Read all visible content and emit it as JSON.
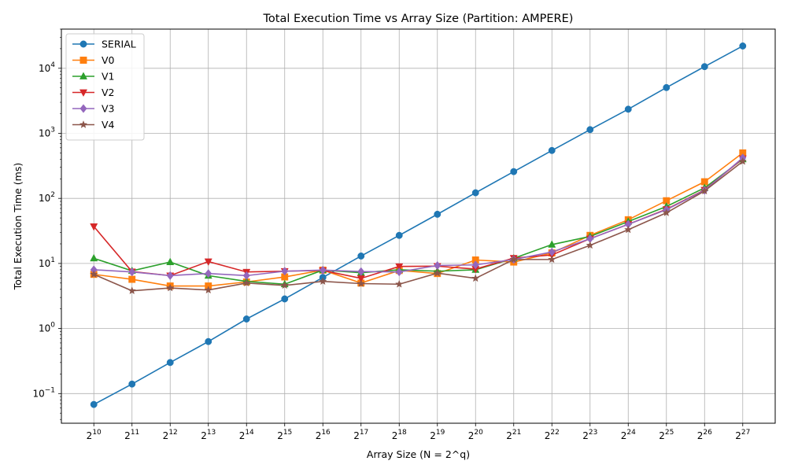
{
  "chart_data": {
    "type": "line",
    "title": "Total Execution Time vs Array Size (Partition: AMPERE)",
    "xlabel": "Array Size (N = 2^q)",
    "ylabel": "Total Execution Time (ms)",
    "yscale": "log",
    "ylim": [
      0.035,
      40000
    ],
    "grid": true,
    "legend_position": "top-left",
    "x_tick_base": "2",
    "x": [
      10,
      11,
      12,
      13,
      14,
      15,
      16,
      17,
      18,
      19,
      20,
      21,
      22,
      23,
      24,
      25,
      26,
      27
    ],
    "y_ticks": [
      {
        "value": 0.1,
        "base": "10",
        "exp": "−1"
      },
      {
        "value": 1,
        "base": "10",
        "exp": "0"
      },
      {
        "value": 10,
        "base": "10",
        "exp": "1"
      },
      {
        "value": 100,
        "base": "10",
        "exp": "2"
      },
      {
        "value": 1000,
        "base": "10",
        "exp": "3"
      },
      {
        "value": 10000,
        "base": "10",
        "exp": "4"
      }
    ],
    "series": [
      {
        "name": "SERIAL",
        "color": "#1f77b4",
        "marker": "circle",
        "values": [
          0.068,
          0.14,
          0.3,
          0.63,
          1.4,
          2.85,
          6.1,
          13,
          27,
          57,
          122,
          258,
          545,
          1140,
          2350,
          5050,
          10600,
          22000
        ]
      },
      {
        "name": "V0",
        "color": "#ff7f0e",
        "marker": "square",
        "values": [
          6.8,
          5.7,
          4.5,
          4.5,
          5.2,
          6.2,
          7.9,
          5.0,
          7.8,
          7.0,
          11.3,
          10.5,
          14.5,
          27,
          47,
          92,
          180,
          500
        ]
      },
      {
        "name": "V1",
        "color": "#2ca02c",
        "marker": "triangle-up",
        "values": [
          12,
          7.7,
          10.5,
          6.5,
          5.3,
          4.8,
          7.9,
          7.2,
          8.0,
          7.6,
          8.0,
          12,
          19.5,
          26,
          44,
          75,
          145,
          400
        ]
      },
      {
        "name": "V2",
        "color": "#d62728",
        "marker": "triangle-down",
        "values": [
          37,
          7.5,
          6.5,
          10.7,
          7.4,
          7.6,
          7.8,
          5.9,
          9.0,
          9.1,
          8.2,
          12.1,
          13.5,
          24,
          40,
          68,
          135,
          410
        ]
      },
      {
        "name": "V3",
        "color": "#9467bd",
        "marker": "diamond",
        "values": [
          8.0,
          7.4,
          6.5,
          7.0,
          6.5,
          7.6,
          7.9,
          7.5,
          7.4,
          9.3,
          9.5,
          11.5,
          15,
          24,
          40,
          67,
          133,
          420
        ]
      },
      {
        "name": "V4",
        "color": "#8c564b",
        "marker": "star",
        "values": [
          6.8,
          3.8,
          4.2,
          3.9,
          5.0,
          4.6,
          5.3,
          4.9,
          4.8,
          7.1,
          5.9,
          11.5,
          11.5,
          19,
          33,
          60,
          130,
          370
        ]
      }
    ]
  }
}
